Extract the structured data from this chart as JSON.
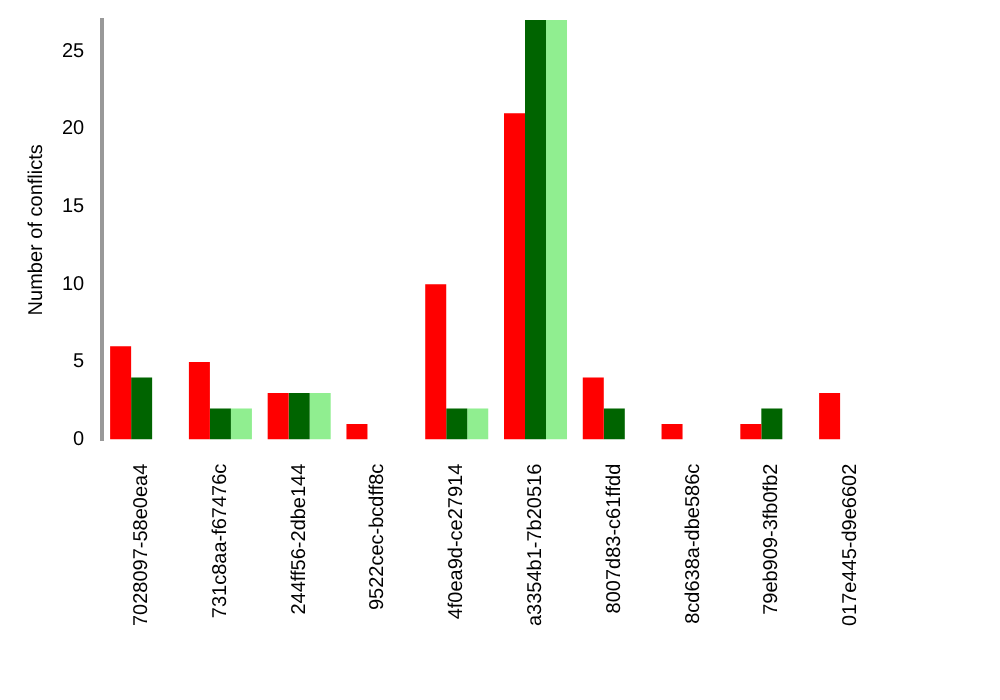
{
  "chart_data": {
    "type": "bar",
    "ylabel": "Number of conflicts",
    "categories": [
      "7028097-58e0ea4",
      "731c8aa-f67476c",
      "244ff56-2dbe144",
      "9522cec-bcdff8c",
      "4f0ea9d-ce27914",
      "a3354b1-7b20516",
      "8007d83-c61ffdd",
      "8cd638a-dbe586c",
      "79eb909-3fb0fb2",
      "017e445-d9e6602"
    ],
    "series": [
      {
        "color": "#ff0000",
        "values": [
          6,
          5,
          3,
          1,
          10,
          21,
          4,
          1,
          1,
          3
        ]
      },
      {
        "color": "#006400",
        "values": [
          4,
          2,
          3,
          0,
          2,
          27,
          2,
          0,
          2,
          0
        ]
      },
      {
        "color": "#90ee90",
        "values": [
          0,
          2,
          3,
          0,
          2,
          27,
          0,
          0,
          0,
          0
        ]
      }
    ],
    "ylim": [
      0,
      27
    ],
    "yticks": [
      0,
      5,
      10,
      15,
      20,
      25
    ],
    "grid": false,
    "legend": false
  }
}
